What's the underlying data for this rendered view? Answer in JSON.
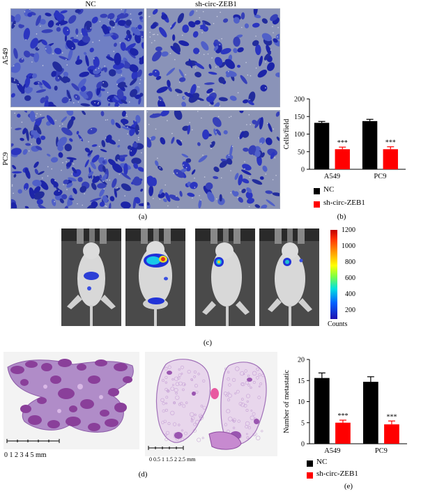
{
  "panel_a": {
    "label": "(a)",
    "col_labels": [
      "NC",
      "sh-circ-ZEB1"
    ],
    "row_labels": [
      "A549",
      "PC9"
    ]
  },
  "panel_b": {
    "label": "(b)",
    "legend": [
      "NC",
      "sh-circ-ZEB1"
    ]
  },
  "panel_c": {
    "label": "(c)",
    "colorbar_ticks": [
      "1200",
      "1000",
      "800",
      "600",
      "400",
      "200"
    ],
    "colorbar_title": "Counts"
  },
  "panel_d": {
    "label": "(d)",
    "scale_left": "0 1 2 3 4 5 mm",
    "scale_right": "0 0.5 1 1.5 2 2.5 mm"
  },
  "panel_e": {
    "label": "(e)",
    "legend": [
      "NC",
      "sh-circ-ZEB1"
    ]
  },
  "colors": {
    "nc": "#000000",
    "sh": "#ff0000",
    "stain": "#2b35b8"
  },
  "chart_data": [
    {
      "type": "bar",
      "ylabel": "Cells/field",
      "ylim": [
        0,
        200
      ],
      "yticks": [
        0,
        50,
        100,
        150,
        200
      ],
      "categories": [
        "A549",
        "PC9"
      ],
      "series": [
        {
          "name": "NC",
          "values": [
            132,
            137
          ],
          "errors": [
            4,
            5
          ]
        },
        {
          "name": "sh-circ-ZEB1",
          "values": [
            57,
            57
          ],
          "errors": [
            6,
            7
          ]
        }
      ],
      "annotations": [
        {
          "category": "A549",
          "series": "sh-circ-ZEB1",
          "text": "***"
        },
        {
          "category": "PC9",
          "series": "sh-circ-ZEB1",
          "text": "***"
        }
      ],
      "legend_position": "bottom"
    },
    {
      "type": "bar",
      "ylabel": "Number of metastatic",
      "ylim": [
        0,
        20
      ],
      "yticks": [
        0,
        5,
        10,
        15,
        20
      ],
      "categories": [
        "A549",
        "PC9"
      ],
      "series": [
        {
          "name": "NC",
          "values": [
            15.6,
            14.7
          ],
          "errors": [
            1.2,
            1.2
          ]
        },
        {
          "name": "sh-circ-ZEB1",
          "values": [
            5.0,
            4.6
          ],
          "errors": [
            0.6,
            0.8
          ]
        }
      ],
      "annotations": [
        {
          "category": "A549",
          "series": "sh-circ-ZEB1",
          "text": "***"
        },
        {
          "category": "PC9",
          "series": "sh-circ-ZEB1",
          "text": "***"
        }
      ],
      "legend_position": "bottom"
    }
  ]
}
